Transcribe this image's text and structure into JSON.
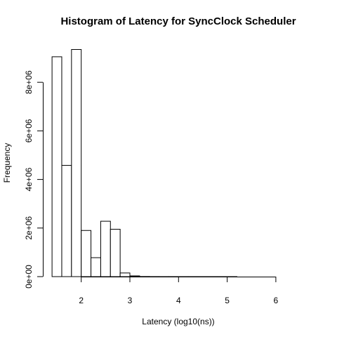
{
  "chart_data": {
    "type": "bar",
    "title": "Histogram of Latency for SyncClock Scheduler",
    "xlabel": "Latency (log10(ns))",
    "ylabel": "Frequency",
    "xlim": [
      1.4,
      6.6
    ],
    "ylim": [
      0,
      9400000
    ],
    "x_ticks": [
      2,
      3,
      4,
      5,
      6
    ],
    "x_tick_labels": [
      "2",
      "3",
      "4",
      "5",
      "6"
    ],
    "y_ticks": [
      0,
      2000000,
      4000000,
      6000000,
      8000000
    ],
    "y_tick_labels": [
      "0e+00",
      "2e+06",
      "4e+06",
      "6e+06",
      "8e+06"
    ],
    "grid": false,
    "bin_width": 0.2,
    "bins": [
      {
        "start": 1.4,
        "end": 1.6,
        "value": 9050000
      },
      {
        "start": 1.6,
        "end": 1.8,
        "value": 4580000
      },
      {
        "start": 1.8,
        "end": 2.0,
        "value": 9350000
      },
      {
        "start": 2.0,
        "end": 2.2,
        "value": 1900000
      },
      {
        "start": 2.2,
        "end": 2.4,
        "value": 780000
      },
      {
        "start": 2.4,
        "end": 2.6,
        "value": 2280000
      },
      {
        "start": 2.6,
        "end": 2.8,
        "value": 1950000
      },
      {
        "start": 2.8,
        "end": 3.0,
        "value": 150000
      },
      {
        "start": 3.0,
        "end": 3.2,
        "value": 30000
      },
      {
        "start": 3.2,
        "end": 3.4,
        "value": 5000
      },
      {
        "start": 3.4,
        "end": 3.6,
        "value": 2000
      },
      {
        "start": 3.6,
        "end": 3.8,
        "value": 1000
      },
      {
        "start": 3.8,
        "end": 4.0,
        "value": 1000
      },
      {
        "start": 4.0,
        "end": 4.2,
        "value": 500
      },
      {
        "start": 4.2,
        "end": 4.4,
        "value": 500
      },
      {
        "start": 4.4,
        "end": 4.6,
        "value": 300
      },
      {
        "start": 4.6,
        "end": 4.8,
        "value": 300
      },
      {
        "start": 4.8,
        "end": 5.0,
        "value": 200
      },
      {
        "start": 5.0,
        "end": 5.2,
        "value": 200
      },
      {
        "start": 5.2,
        "end": 5.4,
        "value": 100
      },
      {
        "start": 5.4,
        "end": 5.6,
        "value": 100
      },
      {
        "start": 5.6,
        "end": 5.8,
        "value": 100
      },
      {
        "start": 5.8,
        "end": 6.0,
        "value": 100
      },
      {
        "start": 6.0,
        "end": 6.2,
        "value": 50
      },
      {
        "start": 6.2,
        "end": 6.4,
        "value": 50
      },
      {
        "start": 6.4,
        "end": 6.6,
        "value": 50
      }
    ]
  }
}
